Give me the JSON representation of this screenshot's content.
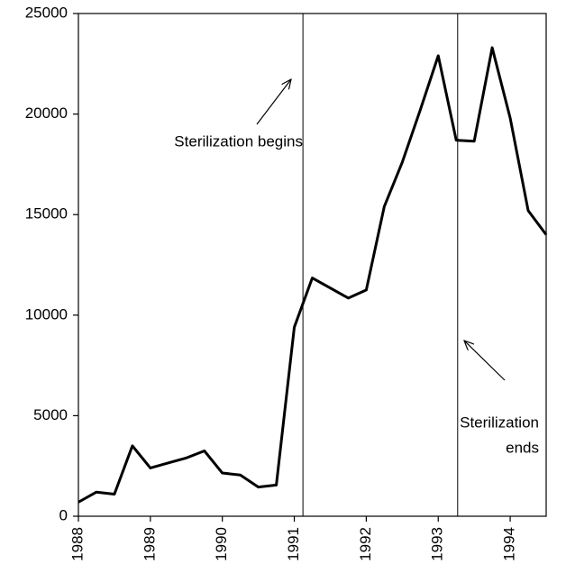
{
  "chart_data": {
    "type": "line",
    "x": [
      1988,
      1988.25,
      1988.5,
      1988.75,
      1989,
      1989.25,
      1989.5,
      1989.75,
      1990,
      1990.25,
      1990.5,
      1990.75,
      1991,
      1991.25,
      1991.5,
      1991.75,
      1992,
      1992.25,
      1992.5,
      1992.75,
      1993,
      1993.25,
      1993.5,
      1993.75,
      1994,
      1994.25,
      1994.5
    ],
    "values": [
      700,
      1200,
      1100,
      3500,
      2400,
      2650,
      2900,
      3250,
      2150,
      2050,
      1450,
      1550,
      9400,
      11850,
      11350,
      10850,
      11250,
      15400,
      17600,
      20200,
      22900,
      18700,
      18650,
      23300,
      19800,
      15200,
      14000
    ],
    "color": "#000000",
    "xlim": [
      1988,
      1994.5
    ],
    "xticks": [
      1988,
      1989,
      1990,
      1991,
      1992,
      1993,
      1994
    ],
    "ylim": [
      0,
      25000
    ],
    "yticks": [
      0,
      5000,
      10000,
      15000,
      20000,
      25000
    ],
    "events": [
      {
        "x": 1991.12,
        "label_lines": [
          "Sterilization begins"
        ]
      },
      {
        "x": 1993.27,
        "label_lines": [
          "Sterilization",
          "ends"
        ]
      }
    ]
  }
}
